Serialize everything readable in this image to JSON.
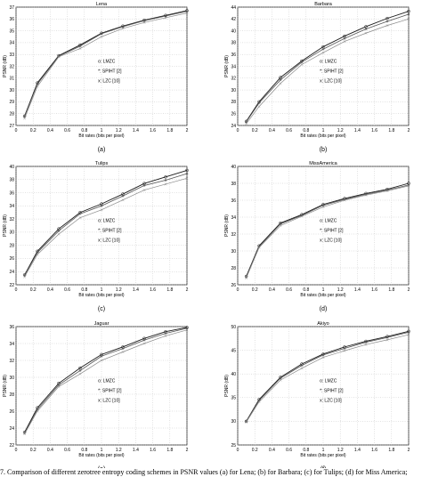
{
  "figure": {
    "caption": "7.   Comparison of different zerotree entropy coding schemes in PSNR values (a) for Lena; (b) for Barbara; (c) for Tulips; (d) for Miss America;"
  },
  "chart_data": [
    {
      "type": "line",
      "title": "Lena",
      "panel_label": "(a)",
      "xlabel": "Bit rates (bits per pixel)",
      "ylabel": "PSNR (dB)",
      "xlim": [
        0,
        2
      ],
      "ylim": [
        27,
        37
      ],
      "xticks": [
        "0",
        "0.2",
        "0.4",
        "0.6",
        "0.8",
        "1",
        "1.2",
        "1.4",
        "1.6",
        "1.8",
        "2"
      ],
      "yticks": [
        "27",
        "28",
        "29",
        "30",
        "31",
        "32",
        "33",
        "34",
        "35",
        "36",
        "37"
      ],
      "grid": true,
      "legend": [
        "o: LMZC",
        "*: SPIHT [2]",
        "x: LZC [10]"
      ],
      "x": [
        0.1,
        0.25,
        0.5,
        0.75,
        1.0,
        1.25,
        1.5,
        1.75,
        2.0
      ],
      "series": [
        {
          "name": "LMZC",
          "marker": "o",
          "values": [
            27.8,
            30.6,
            32.9,
            33.8,
            34.8,
            35.4,
            35.9,
            36.3,
            36.7
          ]
        },
        {
          "name": "SPIHT [2]",
          "marker": "*",
          "values": [
            27.75,
            30.5,
            32.85,
            33.7,
            34.75,
            35.35,
            35.85,
            36.25,
            36.65
          ]
        },
        {
          "name": "LZC [10]",
          "marker": "x",
          "values": [
            27.6,
            30.3,
            32.8,
            33.5,
            34.5,
            35.2,
            35.7,
            36.1,
            36.5
          ]
        }
      ]
    },
    {
      "type": "line",
      "title": "Barbara",
      "panel_label": "(b)",
      "xlabel": "Bit rates (bits per pixel)",
      "ylabel": "PSNR (dB)",
      "xlim": [
        0,
        2
      ],
      "ylim": [
        24,
        44
      ],
      "xticks": [
        "0",
        "0.2",
        "0.4",
        "0.6",
        "0.8",
        "1",
        "1.2",
        "1.4",
        "1.6",
        "1.8",
        "2"
      ],
      "yticks": [
        "24",
        "26",
        "28",
        "30",
        "32",
        "34",
        "36",
        "38",
        "40",
        "42",
        "44"
      ],
      "grid": true,
      "legend": [
        "o: LMZC",
        "*: SPIHT [2]",
        "x: LZC [10]"
      ],
      "x": [
        0.1,
        0.25,
        0.5,
        0.75,
        1.0,
        1.25,
        1.5,
        1.75,
        2.0
      ],
      "series": [
        {
          "name": "LMZC",
          "marker": "o",
          "values": [
            24.7,
            28.0,
            32.1,
            34.9,
            37.3,
            39.1,
            40.7,
            42.1,
            43.3
          ]
        },
        {
          "name": "SPIHT [2]",
          "marker": "*",
          "values": [
            24.6,
            27.8,
            31.7,
            34.7,
            36.9,
            38.7,
            40.3,
            41.6,
            42.8
          ]
        },
        {
          "name": "LZC [10]",
          "marker": "x",
          "values": [
            24.3,
            27.2,
            31.1,
            34.3,
            36.3,
            38.2,
            39.6,
            40.9,
            42.0
          ]
        }
      ]
    },
    {
      "type": "line",
      "title": "Tulips",
      "panel_label": "(c)",
      "xlabel": "Bit rates (bits per pixel)",
      "ylabel": "PSNR (dB)",
      "xlim": [
        0,
        2
      ],
      "ylim": [
        22,
        40
      ],
      "xticks": [
        "0",
        "0.2",
        "0.4",
        "0.6",
        "0.8",
        "1",
        "1.2",
        "1.4",
        "1.6",
        "1.8",
        "2"
      ],
      "yticks": [
        "22",
        "24",
        "26",
        "28",
        "30",
        "32",
        "34",
        "36",
        "38",
        "40"
      ],
      "grid": true,
      "legend": [
        "o: LMZC",
        "*: SPIHT [2]",
        "x: LZC [10]"
      ],
      "x": [
        0.1,
        0.25,
        0.5,
        0.75,
        1.0,
        1.25,
        1.5,
        1.75,
        2.0
      ],
      "series": [
        {
          "name": "LMZC",
          "marker": "o",
          "values": [
            23.5,
            27.1,
            30.5,
            33.0,
            34.3,
            35.8,
            37.4,
            38.4,
            39.4
          ]
        },
        {
          "name": "SPIHT [2]",
          "marker": "*",
          "values": [
            23.4,
            26.9,
            30.2,
            32.8,
            34.0,
            35.5,
            37.1,
            37.9,
            38.9
          ]
        },
        {
          "name": "LZC [10]",
          "marker": "x",
          "values": [
            23.2,
            26.6,
            29.7,
            32.2,
            33.4,
            34.9,
            36.4,
            37.3,
            38.2
          ]
        }
      ]
    },
    {
      "type": "line",
      "title": "MissAmerica",
      "panel_label": "(d)",
      "xlabel": "Bit rates (bits per pixel)",
      "ylabel": "PSNR (dB)",
      "xlim": [
        0,
        2
      ],
      "ylim": [
        26,
        40
      ],
      "xticks": [
        "0",
        "0.2",
        "0.4",
        "0.6",
        "0.8",
        "1",
        "1.2",
        "1.4",
        "1.6",
        "1.8",
        "2"
      ],
      "yticks": [
        "26",
        "28",
        "30",
        "32",
        "34",
        "36",
        "38",
        "40"
      ],
      "grid": true,
      "legend": [
        "o: LMZC",
        "*: SPIHT [2]",
        "x: LZC [10]"
      ],
      "x": [
        0.1,
        0.25,
        0.5,
        0.75,
        1.0,
        1.25,
        1.5,
        1.75,
        2.0
      ],
      "series": [
        {
          "name": "LMZC",
          "marker": "o",
          "values": [
            27.0,
            30.6,
            33.3,
            34.3,
            35.5,
            36.2,
            36.8,
            37.3,
            38.0
          ]
        },
        {
          "name": "SPIHT [2]",
          "marker": "*",
          "values": [
            26.9,
            30.5,
            33.2,
            34.2,
            35.4,
            36.1,
            36.7,
            37.2,
            37.8
          ]
        },
        {
          "name": "LZC [10]",
          "marker": "x",
          "values": [
            26.8,
            30.4,
            33.0,
            34.1,
            35.2,
            36.0,
            36.6,
            37.1,
            37.7
          ]
        }
      ]
    },
    {
      "type": "line",
      "title": "Jaguar",
      "panel_label": "(e)",
      "xlabel": "Bit rates (bits per pixel)",
      "ylabel": "PSNR (dB)",
      "xlim": [
        0,
        2
      ],
      "ylim": [
        22,
        36
      ],
      "xticks": [
        "0",
        "0.2",
        "0.4",
        "0.6",
        "0.8",
        "1",
        "1.2",
        "1.4",
        "1.6",
        "1.8",
        "2"
      ],
      "yticks": [
        "22",
        "24",
        "26",
        "28",
        "30",
        "32",
        "34",
        "36"
      ],
      "grid": true,
      "legend": [
        "o: LMZC",
        "*: SPIHT [2]",
        "x: LZC [10]"
      ],
      "x": [
        0.1,
        0.25,
        0.5,
        0.75,
        1.0,
        1.25,
        1.5,
        1.75,
        2.0
      ],
      "series": [
        {
          "name": "LMZC",
          "marker": "o",
          "values": [
            23.5,
            26.4,
            29.3,
            31.1,
            32.7,
            33.6,
            34.6,
            35.4,
            35.9
          ]
        },
        {
          "name": "SPIHT [2]",
          "marker": "*",
          "values": [
            23.4,
            26.2,
            29.1,
            30.8,
            32.5,
            33.4,
            34.4,
            35.2,
            35.8
          ]
        },
        {
          "name": "LZC [10]",
          "marker": "x",
          "values": [
            23.3,
            26.0,
            28.9,
            30.4,
            32.0,
            33.0,
            34.0,
            34.9,
            35.6
          ]
        }
      ]
    },
    {
      "type": "line",
      "title": "Akiyo",
      "panel_label": "(f)",
      "xlabel": "Bit rates (bits per pixel)",
      "ylabel": "PSNR (dB)",
      "xlim": [
        0,
        2
      ],
      "ylim": [
        25,
        50
      ],
      "xticks": [
        "0",
        "0.2",
        "0.4",
        "0.6",
        "0.8",
        "1",
        "1.2",
        "1.4",
        "1.6",
        "1.8",
        "2"
      ],
      "yticks": [
        "25",
        "30",
        "35",
        "40",
        "45",
        "50"
      ],
      "grid": true,
      "legend": [
        "o: LMZC",
        "*: SPIHT [2]",
        "x: LZC [10]"
      ],
      "x": [
        0.1,
        0.25,
        0.5,
        0.75,
        1.0,
        1.25,
        1.5,
        1.75,
        2.0
      ],
      "series": [
        {
          "name": "LMZC",
          "marker": "o",
          "values": [
            30.0,
            34.6,
            39.3,
            42.1,
            44.2,
            45.7,
            46.9,
            47.9,
            49.0
          ]
        },
        {
          "name": "SPIHT [2]",
          "marker": "*",
          "values": [
            30.0,
            34.4,
            39.1,
            41.8,
            44.0,
            45.4,
            46.7,
            47.7,
            48.8
          ]
        },
        {
          "name": "LZC [10]",
          "marker": "x",
          "values": [
            29.8,
            34.1,
            38.7,
            41.2,
            43.5,
            44.9,
            46.2,
            47.2,
            48.3
          ]
        }
      ]
    }
  ]
}
